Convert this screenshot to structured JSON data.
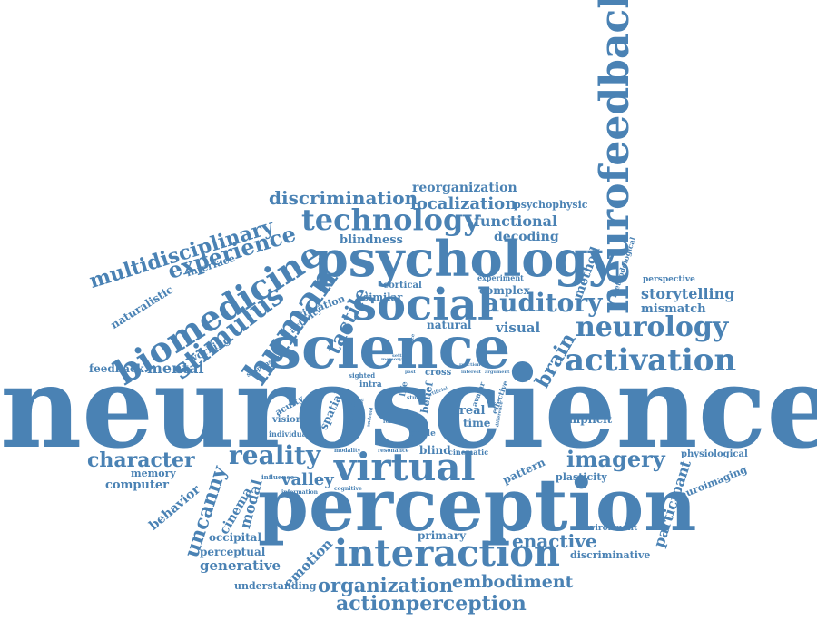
{
  "accent_color": "#4a82b4",
  "words": [
    {
      "id": "neuroscience",
      "text": "neuroscience"
    },
    {
      "id": "perception",
      "text": "perception"
    },
    {
      "id": "science",
      "text": "science"
    },
    {
      "id": "psychology",
      "text": "psychology"
    },
    {
      "id": "neurofeedback",
      "text": "neurofeedback"
    },
    {
      "id": "social",
      "text": "social"
    },
    {
      "id": "virtual",
      "text": "virtual"
    },
    {
      "id": "interaction",
      "text": "interaction"
    },
    {
      "id": "biomedicine",
      "text": "biomedicine"
    },
    {
      "id": "technology",
      "text": "technology"
    },
    {
      "id": "activation",
      "text": "activation"
    },
    {
      "id": "neurology",
      "text": "neurology"
    },
    {
      "id": "auditory",
      "text": "auditory"
    },
    {
      "id": "experience",
      "text": "experience"
    },
    {
      "id": "human",
      "text": "human"
    },
    {
      "id": "stimulus",
      "text": "stimulus"
    },
    {
      "id": "multidisciplinary",
      "text": "multidisciplinary"
    },
    {
      "id": "reality",
      "text": "reality"
    },
    {
      "id": "character",
      "text": "character"
    },
    {
      "id": "imagery",
      "text": "imagery"
    },
    {
      "id": "actionperception",
      "text": "actionperception"
    },
    {
      "id": "organization",
      "text": "organization"
    },
    {
      "id": "embodiment",
      "text": "embodiment"
    },
    {
      "id": "enactive",
      "text": "enactive"
    },
    {
      "id": "discrimination",
      "text": "discrimination"
    },
    {
      "id": "localization",
      "text": "localization"
    },
    {
      "id": "reorganization",
      "text": "reorganization"
    },
    {
      "id": "functional",
      "text": "functional"
    },
    {
      "id": "decoding",
      "text": "decoding"
    },
    {
      "id": "blindness",
      "text": "blindness"
    },
    {
      "id": "psychophysic",
      "text": "psychophysic"
    },
    {
      "id": "storytelling",
      "text": "storytelling"
    },
    {
      "id": "mismatch",
      "text": "mismatch"
    },
    {
      "id": "tactile",
      "text": "tactile"
    },
    {
      "id": "brain",
      "text": "brain"
    },
    {
      "id": "method",
      "text": "method"
    },
    {
      "id": "uncanny",
      "text": "uncanny"
    },
    {
      "id": "valley",
      "text": "valley"
    },
    {
      "id": "modal",
      "text": "modal"
    },
    {
      "id": "cinema",
      "text": "cinema"
    },
    {
      "id": "behavior",
      "text": "behavior"
    },
    {
      "id": "emotion",
      "text": "emotion"
    },
    {
      "id": "participant",
      "text": "participant"
    },
    {
      "id": "mental",
      "text": "mental"
    },
    {
      "id": "feedback",
      "text": "feedback"
    },
    {
      "id": "visual",
      "text": "visual"
    },
    {
      "id": "natural",
      "text": "natural"
    },
    {
      "id": "complex",
      "text": "complex"
    },
    {
      "id": "similar",
      "text": "similar"
    },
    {
      "id": "cortical",
      "text": "cortical"
    },
    {
      "id": "experiment",
      "text": "experiment"
    },
    {
      "id": "perspective",
      "text": "perspective"
    },
    {
      "id": "methodological",
      "text": "methodological"
    },
    {
      "id": "situation",
      "text": "situation"
    },
    {
      "id": "activity",
      "text": "activity"
    },
    {
      "id": "interface",
      "text": "interface"
    },
    {
      "id": "naturalistic",
      "text": "naturalistic"
    },
    {
      "id": "working",
      "text": "working"
    },
    {
      "id": "suspension",
      "text": "suspension"
    },
    {
      "id": "sighted",
      "text": "sighted"
    },
    {
      "id": "intra",
      "text": "intra"
    },
    {
      "id": "memory_small",
      "text": "memory"
    },
    {
      "id": "cross",
      "text": "cross"
    },
    {
      "id": "real",
      "text": "real"
    },
    {
      "id": "time",
      "text": "time"
    },
    {
      "id": "life",
      "text": "life"
    },
    {
      "id": "belief",
      "text": "belief"
    },
    {
      "id": "angle",
      "text": "angle"
    },
    {
      "id": "spatial",
      "text": "spatial"
    },
    {
      "id": "response",
      "text": "response"
    },
    {
      "id": "acuity",
      "text": "acuity"
    },
    {
      "id": "vision",
      "text": "vision"
    },
    {
      "id": "individual",
      "text": "individual"
    },
    {
      "id": "implicit",
      "text": "implicit"
    },
    {
      "id": "pattern",
      "text": "pattern"
    },
    {
      "id": "blind",
      "text": "blind"
    },
    {
      "id": "cinematic",
      "text": "cinematic"
    },
    {
      "id": "resonance",
      "text": "resonance"
    },
    {
      "id": "modality",
      "text": "modality"
    },
    {
      "id": "influence",
      "text": "influence"
    },
    {
      "id": "information",
      "text": "information"
    },
    {
      "id": "cognitive",
      "text": "cognitive"
    },
    {
      "id": "plasticity",
      "text": "plasticity"
    },
    {
      "id": "physiological",
      "text": "physiological"
    },
    {
      "id": "neuroimaging",
      "text": "neuroimaging"
    },
    {
      "id": "environment",
      "text": "environment"
    },
    {
      "id": "discriminative",
      "text": "discriminative"
    },
    {
      "id": "primary",
      "text": "primary"
    },
    {
      "id": "occipital",
      "text": "occipital"
    },
    {
      "id": "perceptual",
      "text": "perceptual"
    },
    {
      "id": "generative",
      "text": "generative"
    },
    {
      "id": "understanding",
      "text": "understanding"
    },
    {
      "id": "computer",
      "text": "computer"
    },
    {
      "id": "memory",
      "text": "memory"
    },
    {
      "id": "avatar",
      "text": "avatar"
    },
    {
      "id": "effective",
      "text": "effective"
    },
    {
      "id": "study",
      "text": "study"
    },
    {
      "id": "follow",
      "text": "follow"
    },
    {
      "id": "relation",
      "text": "relation"
    },
    {
      "id": "android",
      "text": "android"
    },
    {
      "id": "artificial",
      "text": "artificial"
    },
    {
      "id": "argument",
      "text": "argument"
    },
    {
      "id": "interest",
      "text": "interest"
    },
    {
      "id": "reaction",
      "text": "reaction"
    },
    {
      "id": "difference",
      "text": "difference"
    },
    {
      "id": "past",
      "text": "past"
    },
    {
      "id": "surface",
      "text": "surface"
    },
    {
      "id": "setting",
      "text": "setting"
    }
  ]
}
